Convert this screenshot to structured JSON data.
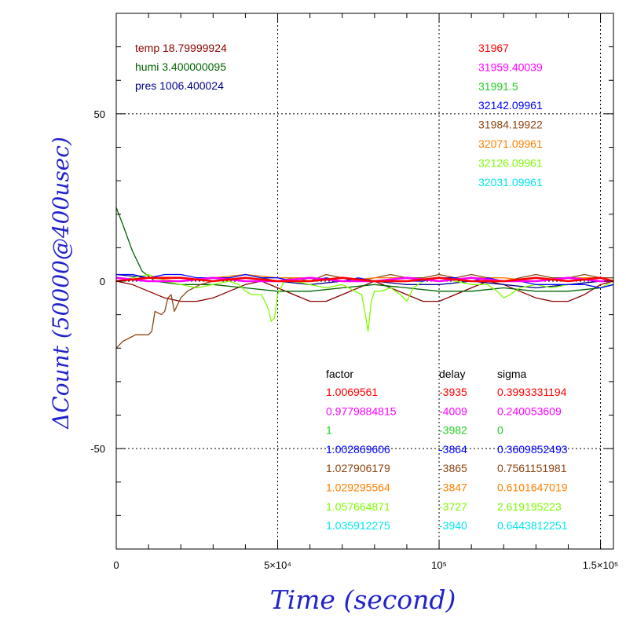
{
  "chart_data": {
    "type": "line",
    "xlabel": "Time (second)",
    "ylabel": "ΔCount (50000@400usec)",
    "xlim": [
      0,
      154000
    ],
    "ylim": [
      -80,
      80
    ],
    "x_ticks": [
      {
        "value": 0,
        "label": "0"
      },
      {
        "value": 50000,
        "label": "5×10⁴"
      },
      {
        "value": 100000,
        "label": "10⁵"
      },
      {
        "value": 150000,
        "label": "1.5×10⁵"
      }
    ],
    "y_ticks": [
      {
        "value": 50,
        "label": "50"
      },
      {
        "value": 0,
        "label": "0"
      },
      {
        "value": -50,
        "label": "-50"
      }
    ],
    "grid": "dotted at labeled ticks",
    "env": [
      {
        "text": "temp 18.79999924",
        "color": "#8b0000"
      },
      {
        "text": "humi 3.400000095",
        "color": "#006400"
      },
      {
        "text": "pres 1006.400024",
        "color": "#00008b"
      }
    ],
    "counts": [
      {
        "text": "31967",
        "color": "#ff0000"
      },
      {
        "text": "31959.40039",
        "color": "#ff00ff"
      },
      {
        "text": "31991.5",
        "color": "#22cc22"
      },
      {
        "text": "32142.09961",
        "color": "#0000ff"
      },
      {
        "text": "31984.19922",
        "color": "#8b4513"
      },
      {
        "text": "32071.09961",
        "color": "#ff7f00"
      },
      {
        "text": "32126.09961",
        "color": "#7cfc00"
      },
      {
        "text": "32031.09961",
        "color": "#00e5ee"
      }
    ],
    "table": {
      "headers": [
        "factor",
        "delay",
        "sigma"
      ],
      "rows": [
        {
          "factor": "1.0069561",
          "delay": "-3935",
          "sigma": "0.3993331194",
          "color": "#ff0000"
        },
        {
          "factor": "0.9779884815",
          "delay": "-4009",
          "sigma": "0.240053609",
          "color": "#ff00ff"
        },
        {
          "factor": "1",
          "delay": "-3982",
          "sigma": "0",
          "color": "#22cc22"
        },
        {
          "factor": "1.002869606",
          "delay": "-3864",
          "sigma": "0.3609852493",
          "color": "#0000ff"
        },
        {
          "factor": "1.027906179",
          "delay": "-3865",
          "sigma": "0.7561151981",
          "color": "#8b4513"
        },
        {
          "factor": "1.029295564",
          "delay": "-3847",
          "sigma": "0.6101647019",
          "color": "#ff7f00"
        },
        {
          "factor": "1.057664871",
          "delay": "-3727",
          "sigma": "2.619195223",
          "color": "#7cfc00"
        },
        {
          "factor": "1.035912275",
          "delay": "-3940",
          "sigma": "0.6443812251",
          "color": "#00e5ee"
        }
      ]
    },
    "series": [
      {
        "color": "#8b0000",
        "x": [
          0,
          5000,
          10000,
          15000,
          20000,
          25000,
          30000,
          35000,
          40000,
          45000,
          50000,
          55000,
          60000,
          65000,
          70000,
          75000,
          80000,
          85000,
          90000,
          95000,
          100000,
          105000,
          110000,
          115000,
          120000,
          125000,
          130000,
          135000,
          140000,
          145000,
          150000,
          154000
        ],
        "values": [
          0,
          -1,
          -3,
          -5,
          -6,
          -6,
          -5,
          -3,
          -1,
          0,
          -2,
          -4,
          -6,
          -6,
          -4,
          -2,
          0,
          -2,
          -4,
          -6,
          -6,
          -4,
          -2,
          0,
          -1,
          -3,
          -5,
          -6,
          -6,
          -4,
          -1,
          0
        ]
      },
      {
        "color": "#006400",
        "x": [
          0,
          2000,
          5000,
          8000,
          12000,
          20000,
          30000,
          40000,
          50000,
          60000,
          70000,
          80000,
          90000,
          100000,
          110000,
          120000,
          130000,
          140000,
          150000,
          154000
        ],
        "values": [
          22,
          17,
          9,
          3,
          0,
          -1,
          -1,
          -2,
          -3,
          -3,
          -2,
          -1,
          -2,
          -3,
          -3,
          -2,
          -3,
          -3,
          -2,
          -1
        ]
      },
      {
        "color": "#00008b",
        "x": [
          0,
          10000,
          20000,
          30000,
          40000,
          50000,
          60000,
          70000,
          80000,
          90000,
          100000,
          110000,
          120000,
          130000,
          140000,
          150000,
          154000
        ],
        "values": [
          2,
          1,
          1,
          0,
          1,
          0,
          -1,
          0,
          0,
          -1,
          -1,
          0,
          -1,
          -2,
          -1,
          0,
          0
        ]
      },
      {
        "color": "#8b4513",
        "x": [
          0,
          2000,
          4000,
          6000,
          8000,
          10000,
          11000,
          12000,
          14000,
          15000,
          16000,
          17000,
          18000,
          20000,
          22000,
          24000,
          26000,
          30000,
          35000,
          40000,
          45000,
          50000,
          55000,
          60000,
          65000,
          70000,
          75000,
          80000,
          85000,
          90000,
          95000,
          100000,
          105000,
          110000,
          115000,
          120000,
          125000,
          130000,
          135000,
          140000,
          145000,
          150000,
          154000
        ],
        "values": [
          -20,
          -18,
          -17,
          -16,
          -16,
          -16,
          -15,
          -9,
          -10,
          -9,
          -5,
          -4,
          -9,
          -5,
          -3,
          -2,
          -1,
          0,
          1,
          2,
          1,
          0,
          1,
          0,
          2,
          1,
          0,
          1,
          2,
          1,
          1,
          2,
          1,
          2,
          1,
          0,
          1,
          2,
          1,
          1,
          2,
          1,
          1
        ]
      },
      {
        "color": "#ff7f00",
        "x": [
          0,
          10000,
          20000,
          30000,
          40000,
          50000,
          60000,
          70000,
          80000,
          90000,
          100000,
          110000,
          120000,
          130000,
          140000,
          150000,
          154000
        ],
        "values": [
          0,
          1,
          0,
          1,
          2,
          1,
          1,
          0,
          1,
          1,
          0,
          1,
          1,
          0,
          1,
          1,
          0
        ]
      },
      {
        "color": "#7cfc00",
        "x": [
          0,
          5000,
          10000,
          15000,
          20000,
          25000,
          30000,
          35000,
          38000,
          40000,
          42000,
          45000,
          47000,
          48000,
          49000,
          50000,
          52000,
          55000,
          60000,
          65000,
          70000,
          72000,
          74000,
          76000,
          77000,
          78000,
          79000,
          80000,
          82000,
          85000,
          88000,
          90000,
          91000,
          92000,
          95000,
          100000,
          105000,
          110000,
          115000,
          118000,
          120000,
          122000,
          125000,
          130000,
          135000,
          140000,
          145000,
          150000,
          154000
        ],
        "values": [
          0,
          1,
          2,
          0,
          -1,
          -2,
          -1,
          0,
          -1,
          -3,
          -4,
          -4,
          -8,
          -12,
          -11,
          -4,
          0,
          0,
          -1,
          -2,
          -1,
          -2,
          -3,
          -4,
          -9,
          -15,
          -6,
          -3,
          -3,
          -2,
          -4,
          -6,
          -4,
          -2,
          0,
          1,
          0,
          -1,
          -1,
          -3,
          -5,
          -4,
          -2,
          -1,
          -2,
          -1,
          -1,
          -2,
          0
        ]
      },
      {
        "color": "#0000ff",
        "x": [
          0,
          5000,
          10000,
          15000,
          20000,
          25000,
          30000,
          35000,
          40000,
          45000,
          50000,
          55000,
          60000,
          65000,
          70000,
          75000,
          80000,
          85000,
          90000,
          95000,
          100000,
          105000,
          110000,
          115000,
          120000,
          125000,
          130000,
          135000,
          140000,
          145000,
          150000,
          154000
        ],
        "values": [
          2,
          2,
          1,
          2,
          2,
          1,
          1,
          1,
          2,
          1,
          1,
          0,
          0,
          1,
          0,
          1,
          0,
          0,
          0,
          0,
          1,
          1,
          0,
          1,
          0,
          0,
          -1,
          -1,
          -1,
          -1,
          -2,
          -1
        ]
      },
      {
        "color": "#ff00ff",
        "x": [
          0,
          10000,
          20000,
          30000,
          40000,
          50000,
          60000,
          70000,
          80000,
          90000,
          100000,
          110000,
          120000,
          130000,
          140000,
          150000,
          154000
        ],
        "values": [
          1,
          0,
          0,
          1,
          0,
          0,
          1,
          0,
          0,
          1,
          0,
          1,
          0,
          0,
          1,
          0,
          0
        ]
      },
      {
        "color": "#ff0000",
        "x": [
          0,
          10000,
          20000,
          30000,
          40000,
          50000,
          60000,
          70000,
          80000,
          90000,
          100000,
          110000,
          120000,
          130000,
          140000,
          150000,
          154000
        ],
        "values": [
          0,
          1,
          1,
          0,
          1,
          0,
          0,
          1,
          0,
          0,
          1,
          0,
          0,
          1,
          0,
          1,
          0
        ]
      }
    ]
  }
}
